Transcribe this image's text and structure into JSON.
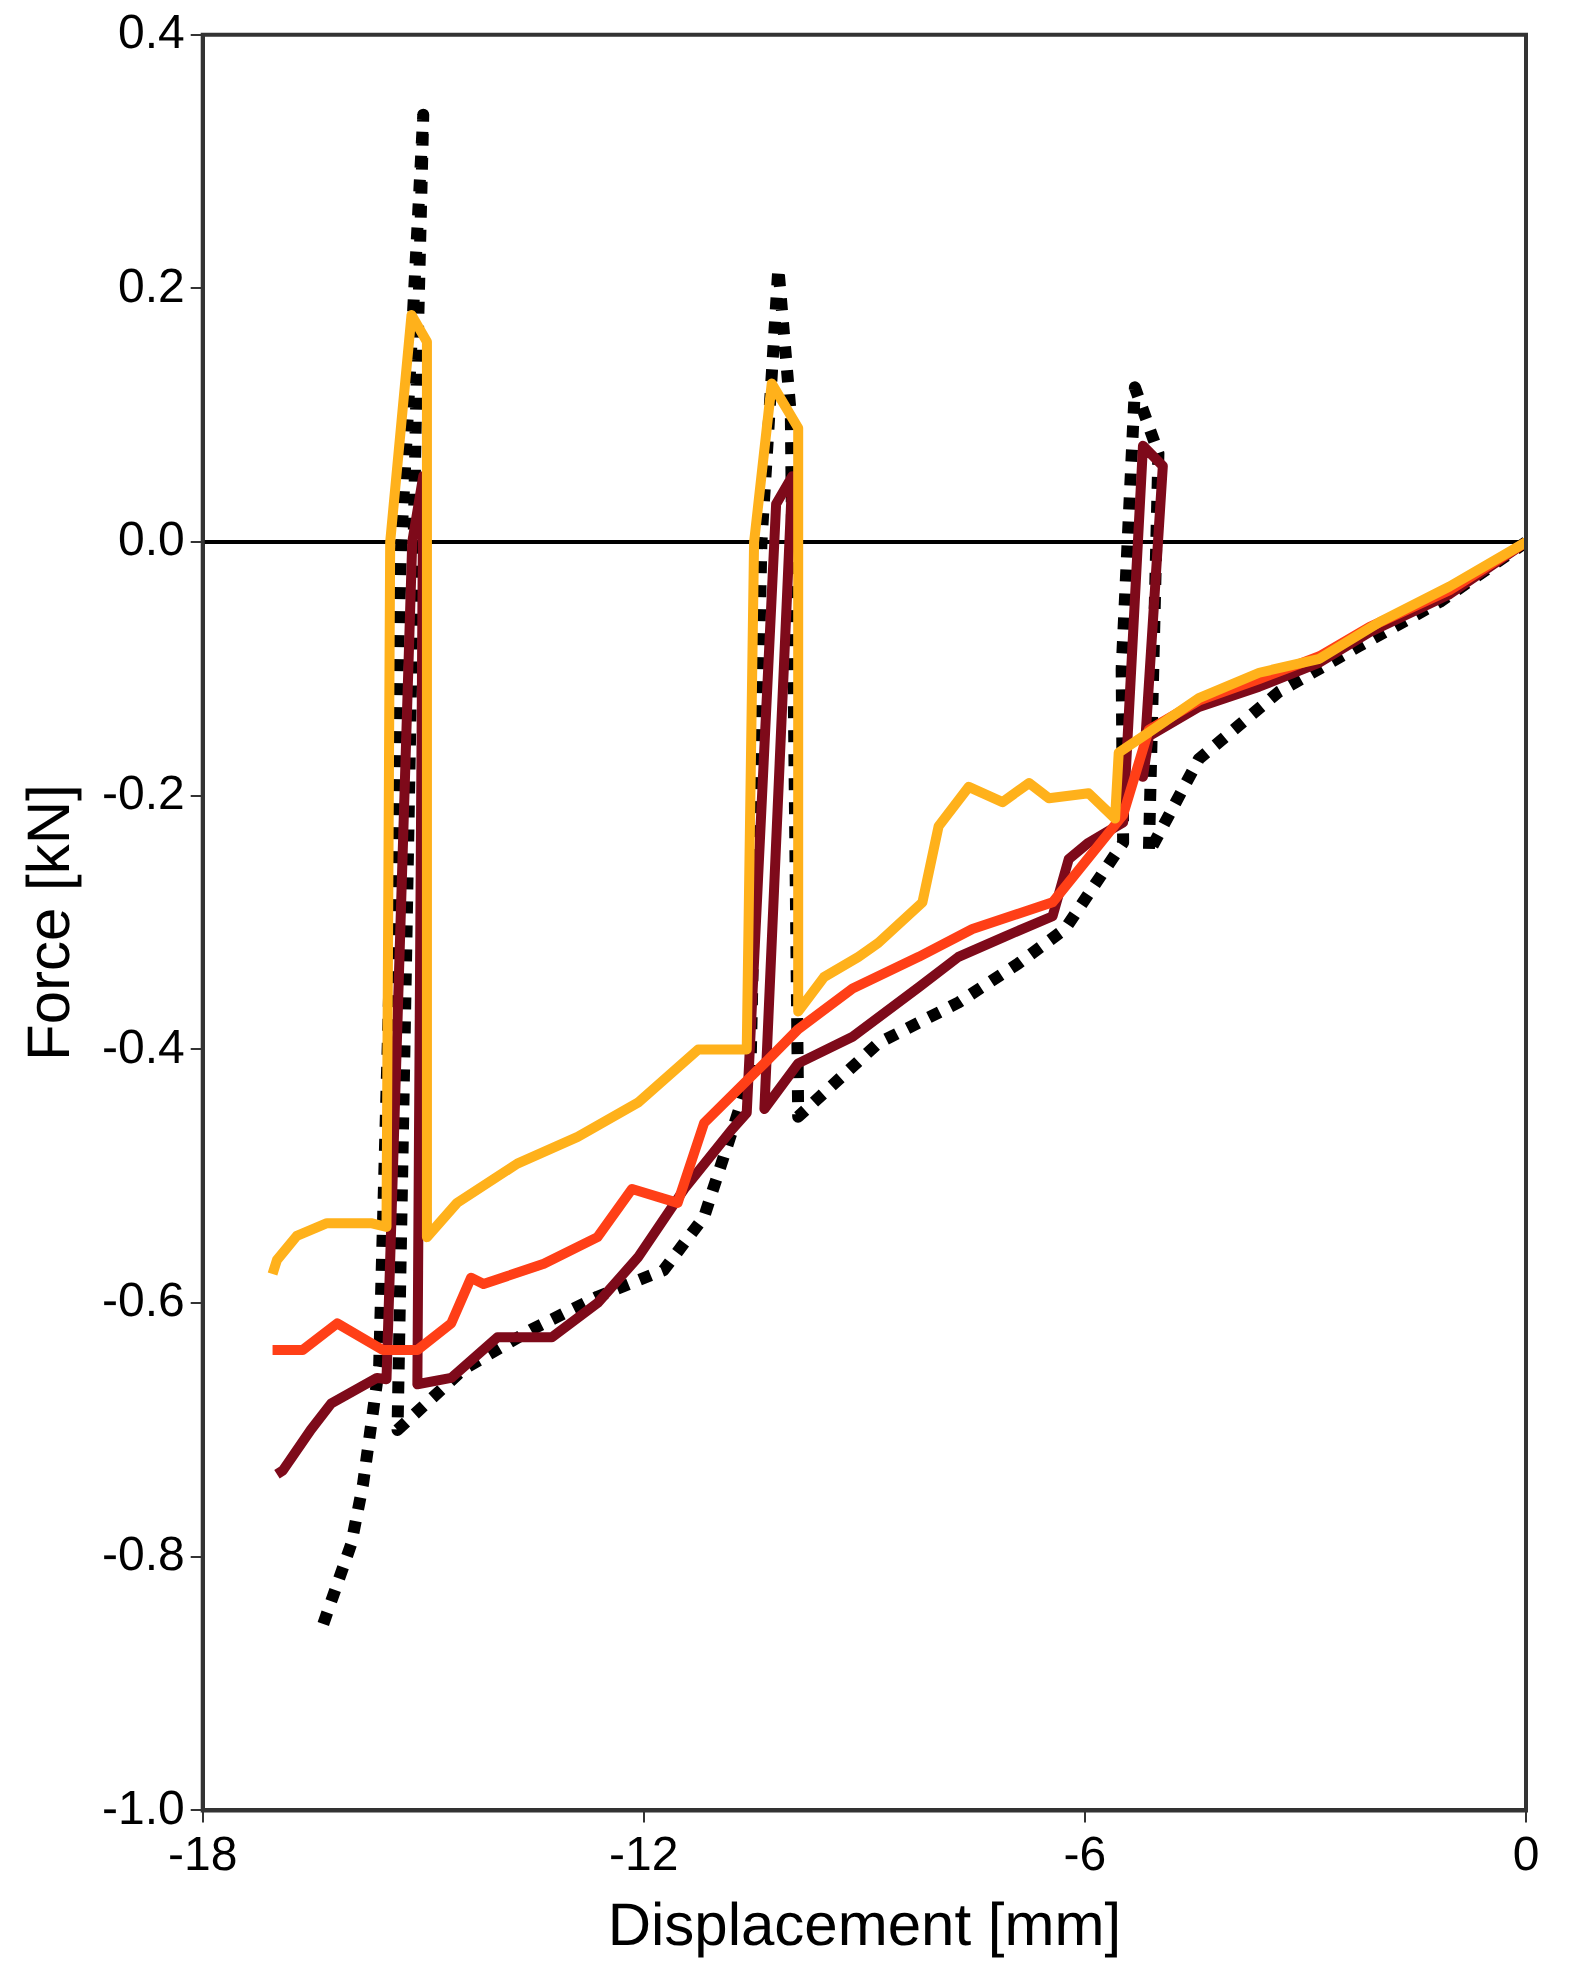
{
  "chart_data": {
    "type": "line",
    "xlabel": "Displacement [mm]",
    "ylabel": "Force [kN]",
    "xlim": [
      -18,
      0
    ],
    "xticks": [
      -18,
      -12,
      -6,
      0
    ],
    "ylim": [
      -1.0,
      0.4
    ],
    "yticks": [
      {
        "value": -1.0,
        "label": "-1.0"
      },
      {
        "value": -0.8,
        "label": "-0.8"
      },
      {
        "value": -0.6,
        "label": "-0.6"
      },
      {
        "value": -0.4,
        "label": "-0.4"
      },
      {
        "value": -0.2,
        "label": "-0.2"
      },
      {
        "value": 0,
        "label": "0.0"
      },
      {
        "value": 0.2,
        "label": "0.2"
      },
      {
        "value": 0.4,
        "label": "0.4"
      }
    ],
    "grid": false,
    "legend": false,
    "marker": "none",
    "ref_lines": [
      {
        "axis": "y",
        "value": 0,
        "color": "#000000",
        "line_style": "solid"
      }
    ],
    "series": [
      {
        "color": "#ffb11b",
        "line_style": "solid",
        "x": [
          0,
          -1.04,
          -1.99,
          -2.81,
          -3.63,
          -4.45,
          -5.13,
          -5.54,
          -5.59,
          -5.95,
          -6.49,
          -6.76,
          -7.12,
          -7.58,
          -7.99,
          -8.21,
          -8.81,
          -9.08,
          -9.55,
          -9.9,
          -9.9,
          -10.26,
          -10.5,
          -10.6,
          -11.26,
          -12.08,
          -12.9,
          -13.72,
          -14.54,
          -14.95,
          -14.95,
          -15.16,
          -15.45,
          -15.5,
          -15.71,
          -16.31,
          -16.72,
          -16.99,
          -17.05
        ],
        "values": [
          0,
          -0.035,
          -0.063,
          -0.092,
          -0.103,
          -0.123,
          -0.15,
          -0.166,
          -0.218,
          -0.198,
          -0.202,
          -0.19,
          -0.205,
          -0.193,
          -0.224,
          -0.284,
          -0.316,
          -0.327,
          -0.343,
          -0.37,
          0.09,
          0.125,
          0.0,
          -0.4,
          -0.4,
          -0.442,
          -0.469,
          -0.49,
          -0.521,
          -0.548,
          0.158,
          0.179,
          0.0,
          -0.54,
          -0.537,
          -0.537,
          -0.547,
          -0.566,
          -0.577
        ]
      },
      {
        "color": "#ff3f17",
        "line_style": "solid",
        "x": [
          0,
          -1.04,
          -2.13,
          -2.81,
          -3.63,
          -4.45,
          -5.13,
          -5.48,
          -6.44,
          -7.53,
          -8.26,
          -9.16,
          -9.9,
          -10.36,
          -11.18,
          -11.54,
          -12.16,
          -12.63,
          -13.36,
          -14.18,
          -14.35,
          -14.62,
          -15.08,
          -15.55,
          -16.17,
          -16.64,
          -17.05
        ],
        "values": [
          0,
          -0.038,
          -0.067,
          -0.09,
          -0.108,
          -0.125,
          -0.148,
          -0.215,
          -0.284,
          -0.305,
          -0.327,
          -0.352,
          -0.384,
          -0.411,
          -0.458,
          -0.521,
          -0.51,
          -0.548,
          -0.569,
          -0.585,
          -0.58,
          -0.616,
          -0.637,
          -0.637,
          -0.616,
          -0.637,
          -0.637
        ]
      },
      {
        "color": "#7e0a1a",
        "line_style": "solid",
        "x": [
          0,
          -1.04,
          -2.13,
          -2.81,
          -3.63,
          -4.45,
          -5.13,
          -5.21,
          -4.94,
          -5.21,
          -5.48,
          -5.95,
          -6.22,
          -6.44,
          -7.09,
          -7.72,
          -8.26,
          -9.16,
          -9.9,
          -10.36,
          -9.98,
          -10.2,
          -10.6,
          -10.8,
          -11.45,
          -12.08,
          -12.63,
          -13.25,
          -13.99,
          -14.62,
          -15.08,
          -15.0,
          -15.15,
          -15.5,
          -15.63,
          -16.25,
          -16.53,
          -16.91,
          -16.99
        ],
        "values": [
          0,
          -0.041,
          -0.071,
          -0.095,
          -0.114,
          -0.13,
          -0.153,
          -0.185,
          0.06,
          0.076,
          -0.221,
          -0.237,
          -0.25,
          -0.295,
          -0.311,
          -0.327,
          -0.351,
          -0.39,
          -0.411,
          -0.447,
          0.052,
          0.03,
          -0.45,
          -0.463,
          -0.51,
          -0.564,
          -0.6,
          -0.627,
          -0.627,
          -0.659,
          -0.664,
          0.052,
          0.0,
          -0.66,
          -0.659,
          -0.679,
          -0.7,
          -0.732,
          -0.735
        ]
      },
      {
        "color": "#000000",
        "line_style": "dotted",
        "x": [
          0,
          -1.17,
          -2.27,
          -3.36,
          -4.45,
          -5.13,
          -5.0,
          -5.32,
          -5.5,
          -5.48,
          -6.27,
          -6.9,
          -7.72,
          -8.81,
          -9.9,
          -10.0,
          -10.17,
          -10.4,
          -10.55,
          -11.18,
          -11.73,
          -12.63,
          -13.53,
          -14.45,
          -15.35,
          -15.1,
          -15.0,
          -15.3,
          -15.6,
          -15.82,
          -15.98,
          -16.36
        ],
        "values": [
          0,
          -0.047,
          -0.082,
          -0.118,
          -0.171,
          -0.245,
          0.07,
          0.122,
          -0.1,
          -0.237,
          -0.305,
          -0.332,
          -0.363,
          -0.395,
          -0.453,
          0.1,
          0.216,
          0.0,
          -0.42,
          -0.532,
          -0.574,
          -0.595,
          -0.621,
          -0.652,
          -0.7,
          0.1,
          0.337,
          0.0,
          -0.65,
          -0.743,
          -0.79,
          -0.853
        ]
      }
    ]
  }
}
